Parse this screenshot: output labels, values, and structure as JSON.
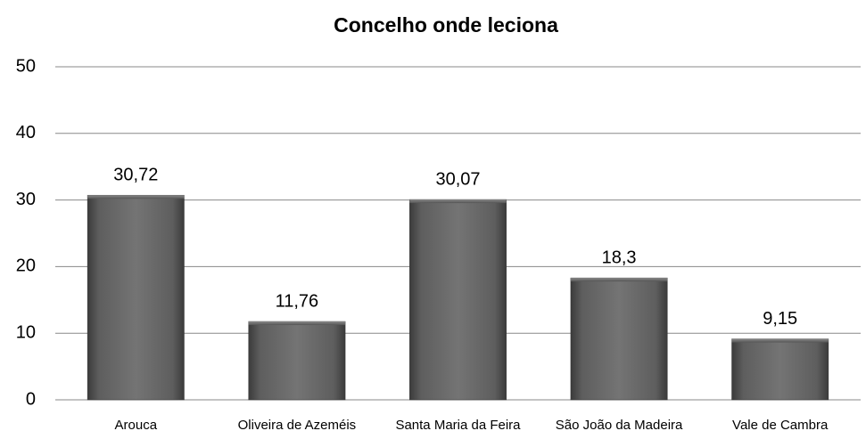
{
  "chart_data": {
    "type": "bar",
    "title": "Concelho onde leciona",
    "categories": [
      "Arouca",
      "Oliveira de Azeméis",
      "Santa Maria da Feira",
      "São João da Madeira",
      "Vale de Cambra"
    ],
    "values": [
      30.72,
      11.76,
      30.07,
      18.3,
      9.15
    ],
    "value_labels": [
      "30,72",
      "11,76",
      "30,07",
      "18,3",
      "9,15"
    ],
    "color": "#5a5a5a",
    "ylim": [
      0,
      50
    ],
    "yticks": [
      0,
      10,
      20,
      30,
      40,
      50
    ],
    "grid": true
  }
}
